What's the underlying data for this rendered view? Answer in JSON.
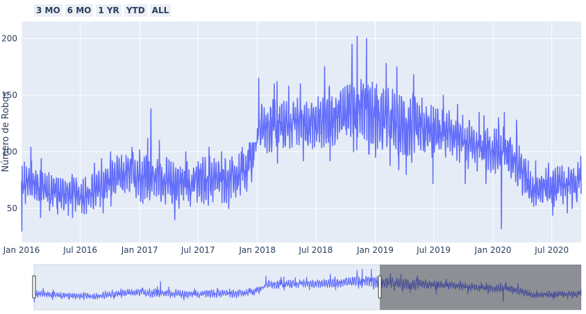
{
  "range_selector": {
    "buttons": [
      "3 MO",
      "6 MO",
      "1 YR",
      "YTD",
      "ALL"
    ]
  },
  "chart_data": {
    "type": "line",
    "title": "",
    "xlabel": "",
    "ylabel": "Número de Robos",
    "x_range": [
      "2016-01-01",
      "2020-09-30"
    ],
    "ylim": [
      20,
      215
    ],
    "x_ticks": [
      {
        "date": "2016-01-01",
        "label": "Jan 2016"
      },
      {
        "date": "2016-07-01",
        "label": "Jul 2016"
      },
      {
        "date": "2017-01-01",
        "label": "Jan 2017"
      },
      {
        "date": "2017-07-01",
        "label": "Jul 2017"
      },
      {
        "date": "2018-01-01",
        "label": "Jan 2018"
      },
      {
        "date": "2018-07-01",
        "label": "Jul 2018"
      },
      {
        "date": "2019-01-01",
        "label": "Jan 2019"
      },
      {
        "date": "2019-07-01",
        "label": "Jul 2019"
      },
      {
        "date": "2020-01-01",
        "label": "Jan 2020"
      },
      {
        "date": "2020-07-01",
        "label": "Jul 2020"
      }
    ],
    "y_ticks": [
      50,
      100,
      150,
      200
    ],
    "grid": true,
    "line_color": "#636efa",
    "series": [
      {
        "name": "",
        "x": [
          "2016-01-01",
          "2016-02-01",
          "2016-03-01",
          "2016-04-01",
          "2016-05-01",
          "2016-06-01",
          "2016-07-01",
          "2016-08-01",
          "2016-09-01",
          "2016-10-01",
          "2016-11-01",
          "2016-12-01",
          "2017-01-01",
          "2017-02-01",
          "2017-03-01",
          "2017-04-01",
          "2017-05-01",
          "2017-06-01",
          "2017-07-01",
          "2017-08-01",
          "2017-09-01",
          "2017-10-01",
          "2017-11-01",
          "2017-12-01",
          "2018-01-01",
          "2018-02-01",
          "2018-03-01",
          "2018-04-01",
          "2018-05-01",
          "2018-06-01",
          "2018-07-01",
          "2018-08-01",
          "2018-09-01",
          "2018-10-01",
          "2018-11-01",
          "2018-12-01",
          "2019-01-01",
          "2019-02-01",
          "2019-03-01",
          "2019-04-01",
          "2019-05-01",
          "2019-06-01",
          "2019-07-01",
          "2019-08-01",
          "2019-09-01",
          "2019-10-01",
          "2019-11-01",
          "2019-12-01",
          "2020-01-01",
          "2020-02-01",
          "2020-03-01",
          "2020-04-01",
          "2020-05-01",
          "2020-06-01",
          "2020-07-01",
          "2020-08-01",
          "2020-09-01"
        ],
        "mean": [
          70,
          72,
          70,
          66,
          64,
          62,
          62,
          62,
          68,
          76,
          78,
          80,
          80,
          78,
          77,
          72,
          72,
          72,
          74,
          75,
          76,
          76,
          78,
          80,
          120,
          122,
          124,
          124,
          126,
          126,
          125,
          130,
          132,
          136,
          142,
          140,
          130,
          128,
          126,
          122,
          120,
          118,
          118,
          117,
          115,
          108,
          106,
          104,
          100,
          100,
          98,
          82,
          68,
          68,
          70,
          72,
          72
        ],
        "min": [
          30,
          42,
          48,
          45,
          44,
          42,
          44,
          40,
          46,
          52,
          55,
          58,
          24,
          50,
          54,
          40,
          44,
          38,
          34,
          40,
          46,
          50,
          50,
          42,
          84,
          88,
          90,
          94,
          92,
          95,
          90,
          92,
          95,
          100,
          102,
          98,
          50,
          88,
          84,
          80,
          75,
          72,
          74,
          74,
          70,
          72,
          70,
          72,
          32,
          70,
          70,
          48,
          44,
          38,
          44,
          46,
          50
        ],
        "max": [
          104,
          92,
          94,
          88,
          90,
          80,
          86,
          90,
          94,
          100,
          108,
          104,
          112,
          138,
          110,
          100,
          100,
          98,
          102,
          104,
          100,
          108,
          104,
          108,
          165,
          160,
          162,
          158,
          160,
          165,
          175,
          170,
          180,
          195,
          202,
          200,
          185,
          178,
          175,
          168,
          165,
          158,
          150,
          145,
          142,
          140,
          135,
          132,
          130,
          135,
          128,
          110,
          92,
          90,
          92,
          96,
          96
        ]
      }
    ]
  },
  "range_slider": {
    "selected_range": [
      "2016-01-01",
      "2019-01-01"
    ]
  }
}
